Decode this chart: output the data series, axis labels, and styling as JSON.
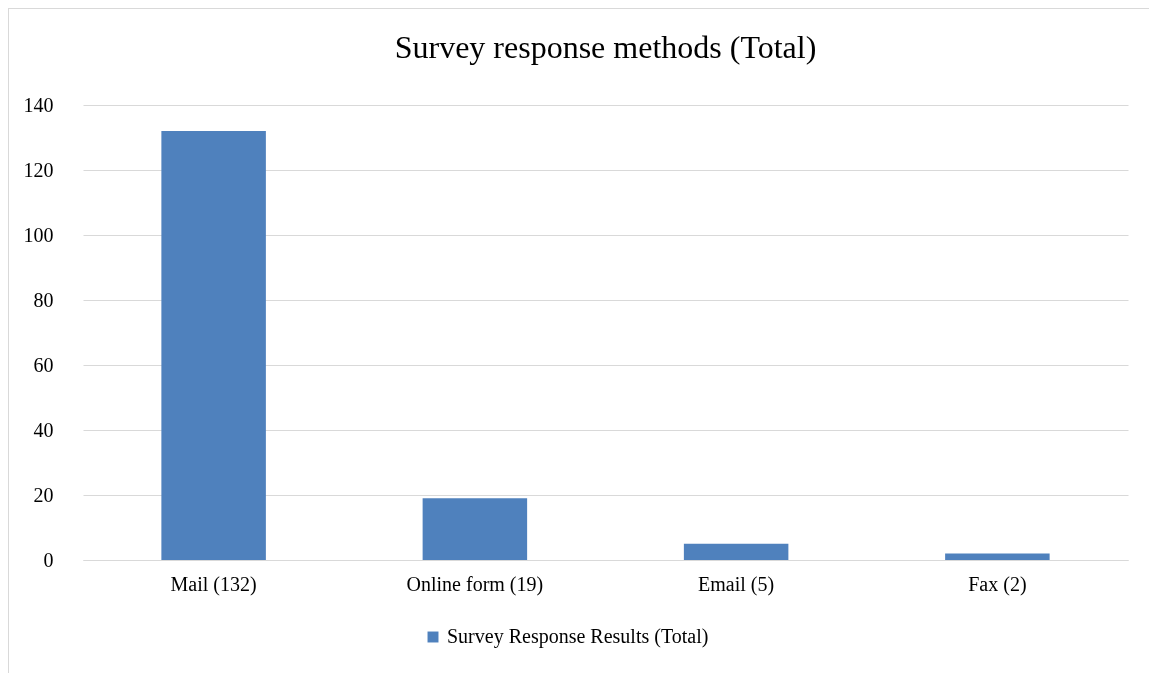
{
  "chart_data": {
    "type": "bar",
    "title": "Survey response methods (Total)",
    "categories": [
      "Mail (132)",
      "Online form (19)",
      "Email (5)",
      "Fax (2)"
    ],
    "series": [
      {
        "name": "Survey Response Results (Total)",
        "color": "#4f81bd",
        "values": [
          132,
          19,
          5,
          2
        ]
      }
    ],
    "ylim": [
      0,
      140
    ],
    "yticks": [
      0,
      20,
      40,
      60,
      80,
      100,
      120,
      140
    ],
    "grid": "y",
    "legend": "bottom"
  }
}
